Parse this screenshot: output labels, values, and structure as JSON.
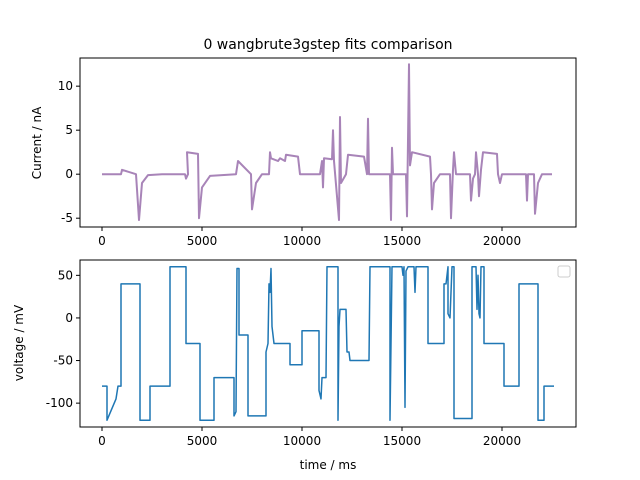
{
  "chart_data": [
    {
      "type": "line",
      "title": "0 wangbrute3gstep fits comparison",
      "xlabel": "",
      "ylabel": "Current / nA",
      "xlim": [
        -1100,
        23700
      ],
      "ylim": [
        -6,
        13.2
      ],
      "xticks": [
        0,
        5000,
        10000,
        15000,
        20000
      ],
      "yticks": [
        -5,
        0,
        5,
        10
      ],
      "grid": false,
      "legend": null,
      "series": [
        {
          "color": "#a884b8",
          "points": [
            [
              0,
              0.0
            ],
            [
              950,
              0.0
            ],
            [
              1000,
              0.5
            ],
            [
              1700,
              0.0
            ],
            [
              1850,
              -5.2
            ],
            [
              2000,
              -1.0
            ],
            [
              2300,
              -0.1
            ],
            [
              3000,
              0.0
            ],
            [
              4150,
              0.0
            ],
            [
              4200,
              -0.5
            ],
            [
              4300,
              0.0
            ],
            [
              4250,
              2.5
            ],
            [
              4800,
              2.3
            ],
            [
              4850,
              -5.0
            ],
            [
              5000,
              -1.5
            ],
            [
              5400,
              -0.2
            ],
            [
              6700,
              0.0
            ],
            [
              6800,
              1.5
            ],
            [
              7450,
              0.0
            ],
            [
              7500,
              -4.0
            ],
            [
              7700,
              -1.0
            ],
            [
              8000,
              0.0
            ],
            [
              8350,
              0.0
            ],
            [
              8400,
              2.5
            ],
            [
              8450,
              1.8
            ],
            [
              8800,
              1.5
            ],
            [
              8900,
              1.8
            ],
            [
              9150,
              1.5
            ],
            [
              9200,
              2.2
            ],
            [
              9800,
              2.0
            ],
            [
              9900,
              0.0
            ],
            [
              10900,
              0.0
            ],
            [
              11000,
              1.5
            ],
            [
              11050,
              -1.5
            ],
            [
              11100,
              1.8
            ],
            [
              11500,
              1.7
            ],
            [
              11550,
              5.0
            ],
            [
              11600,
              1.5
            ],
            [
              11850,
              -5.2
            ],
            [
              11900,
              6.5
            ],
            [
              11950,
              -1.0
            ],
            [
              12200,
              0.0
            ],
            [
              12300,
              2.2
            ],
            [
              13100,
              2.0
            ],
            [
              13250,
              0.0
            ],
            [
              13300,
              6.3
            ],
            [
              13350,
              0.0
            ],
            [
              14400,
              0.0
            ],
            [
              14450,
              -5.2
            ],
            [
              14500,
              3.0
            ],
            [
              14550,
              0.0
            ],
            [
              15200,
              0.0
            ],
            [
              15250,
              -4.8
            ],
            [
              15350,
              12.5
            ],
            [
              15400,
              1.0
            ],
            [
              15500,
              2.5
            ],
            [
              16400,
              2.0
            ],
            [
              16450,
              0.0
            ],
            [
              16500,
              -4.0
            ],
            [
              16600,
              -1.0
            ],
            [
              16900,
              0.0
            ],
            [
              17400,
              0.0
            ],
            [
              17450,
              -5.0
            ],
            [
              17550,
              0.5
            ],
            [
              17600,
              2.5
            ],
            [
              17700,
              0.0
            ],
            [
              18400,
              0.0
            ],
            [
              18450,
              -3.0
            ],
            [
              18550,
              -0.5
            ],
            [
              18650,
              0.0
            ],
            [
              18700,
              2.5
            ],
            [
              18800,
              0.0
            ],
            [
              18850,
              -2.5
            ],
            [
              18950,
              0.5
            ],
            [
              19050,
              2.5
            ],
            [
              19750,
              2.3
            ],
            [
              19800,
              0.0
            ],
            [
              19900,
              -1.0
            ],
            [
              20000,
              0.0
            ],
            [
              21200,
              0.0
            ],
            [
              21250,
              -3.0
            ],
            [
              21300,
              0.0
            ],
            [
              21600,
              0.0
            ],
            [
              21650,
              -4.5
            ],
            [
              21800,
              -1.0
            ],
            [
              22000,
              0.0
            ],
            [
              22500,
              0.0
            ]
          ]
        }
      ]
    },
    {
      "type": "line",
      "title": "",
      "xlabel": "time / ms",
      "ylabel": "voltage / mV",
      "xlim": [
        -1100,
        23700
      ],
      "ylim": [
        -128,
        68
      ],
      "xticks": [
        0,
        5000,
        10000,
        15000,
        20000
      ],
      "yticks": [
        -100,
        -50,
        0,
        50
      ],
      "grid": false,
      "legend": "top-right, empty box",
      "series": [
        {
          "color": "#1f77b4",
          "points": [
            [
              0,
              -80
            ],
            [
              250,
              -80
            ],
            [
              250,
              -120
            ],
            [
              700,
              -95
            ],
            [
              800,
              -80
            ],
            [
              950,
              -80
            ],
            [
              950,
              40
            ],
            [
              1900,
              40
            ],
            [
              1900,
              -120
            ],
            [
              2400,
              -120
            ],
            [
              2400,
              -80
            ],
            [
              3400,
              -80
            ],
            [
              3400,
              60
            ],
            [
              4200,
              60
            ],
            [
              4200,
              -30
            ],
            [
              4900,
              -30
            ],
            [
              4900,
              -120
            ],
            [
              5600,
              -120
            ],
            [
              5600,
              -70
            ],
            [
              6600,
              -70
            ],
            [
              6600,
              -115
            ],
            [
              6700,
              -110
            ],
            [
              6750,
              58
            ],
            [
              6850,
              58
            ],
            [
              6850,
              -20
            ],
            [
              7300,
              -20
            ],
            [
              7300,
              -115
            ],
            [
              8200,
              -115
            ],
            [
              8200,
              -40
            ],
            [
              8300,
              -30
            ],
            [
              8350,
              40
            ],
            [
              8400,
              30
            ],
            [
              8450,
              58
            ],
            [
              8500,
              -10
            ],
            [
              8600,
              -30
            ],
            [
              9400,
              -30
            ],
            [
              9400,
              -55
            ],
            [
              10000,
              -55
            ],
            [
              10000,
              -15
            ],
            [
              10850,
              -15
            ],
            [
              10850,
              -85
            ],
            [
              10950,
              -95
            ],
            [
              11000,
              -70
            ],
            [
              11200,
              -70
            ],
            [
              11250,
              60
            ],
            [
              11800,
              60
            ],
            [
              11800,
              -120
            ],
            [
              11850,
              -10
            ],
            [
              11900,
              10
            ],
            [
              12200,
              10
            ],
            [
              12250,
              -40
            ],
            [
              12350,
              -40
            ],
            [
              12400,
              -50
            ],
            [
              13350,
              -50
            ],
            [
              13400,
              60
            ],
            [
              14400,
              60
            ],
            [
              14400,
              -120
            ],
            [
              14500,
              60
            ],
            [
              15000,
              60
            ],
            [
              15050,
              50
            ],
            [
              15100,
              60
            ],
            [
              15150,
              -105
            ],
            [
              15200,
              55
            ],
            [
              15300,
              60
            ],
            [
              15600,
              60
            ],
            [
              15650,
              30
            ],
            [
              15700,
              60
            ],
            [
              16300,
              60
            ],
            [
              16300,
              -30
            ],
            [
              17100,
              -30
            ],
            [
              17100,
              40
            ],
            [
              17200,
              40
            ],
            [
              17300,
              60
            ],
            [
              17300,
              5
            ],
            [
              17400,
              0
            ],
            [
              17500,
              60
            ],
            [
              17600,
              60
            ],
            [
              17600,
              -118
            ],
            [
              18500,
              -118
            ],
            [
              18500,
              60
            ],
            [
              18700,
              60
            ],
            [
              18750,
              10
            ],
            [
              18800,
              50
            ],
            [
              18850,
              5
            ],
            [
              18900,
              0
            ],
            [
              18950,
              60
            ],
            [
              19100,
              60
            ],
            [
              19100,
              -30
            ],
            [
              20100,
              -30
            ],
            [
              20100,
              -80
            ],
            [
              20850,
              -80
            ],
            [
              20850,
              40
            ],
            [
              21800,
              40
            ],
            [
              21800,
              -120
            ],
            [
              22100,
              -120
            ],
            [
              22100,
              -80
            ],
            [
              22600,
              -80
            ]
          ]
        }
      ]
    }
  ]
}
